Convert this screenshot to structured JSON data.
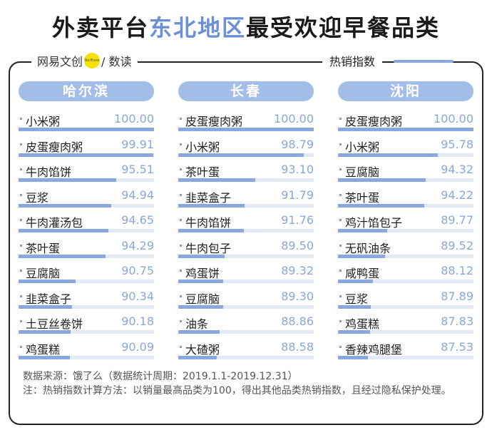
{
  "header": {
    "title_before": "外卖平台",
    "title_highlight": "东北地区",
    "title_after": "最受欢迎早餐品类"
  },
  "brand": {
    "text_left": "网易文创",
    "logo_text": "NetEase",
    "text_right": "/ 数读"
  },
  "legend_label": "热销指数",
  "chart_data": {
    "type": "bar",
    "title": "外卖平台东北地区最受欢迎早餐品类",
    "value_label": "热销指数",
    "xlim": [
      0,
      100
    ],
    "cities": [
      {
        "name": "哈尔滨",
        "items": [
          {
            "name": "小米粥",
            "value": 100.0,
            "display": "100.00"
          },
          {
            "name": "皮蛋瘦肉粥",
            "value": 99.91,
            "display": "99.91"
          },
          {
            "name": "牛肉馅饼",
            "value": 95.51,
            "display": "95.51"
          },
          {
            "name": "豆浆",
            "value": 94.94,
            "display": "94.94"
          },
          {
            "name": "牛肉灌汤包",
            "value": 94.65,
            "display": "94.65"
          },
          {
            "name": "茶叶蛋",
            "value": 94.29,
            "display": "94.29"
          },
          {
            "name": "豆腐脑",
            "value": 90.75,
            "display": "90.75"
          },
          {
            "name": "韭菜盒子",
            "value": 90.34,
            "display": "90.34"
          },
          {
            "name": "土豆丝卷饼",
            "value": 90.18,
            "display": "90.18"
          },
          {
            "name": "鸡蛋糕",
            "value": 90.09,
            "display": "90.09"
          }
        ]
      },
      {
        "name": "长春",
        "items": [
          {
            "name": "皮蛋瘦肉粥",
            "value": 100.0,
            "display": "100.00"
          },
          {
            "name": "小米粥",
            "value": 98.79,
            "display": "98.79"
          },
          {
            "name": "茶叶蛋",
            "value": 93.1,
            "display": "93.10"
          },
          {
            "name": "韭菜盒子",
            "value": 91.79,
            "display": "91.79"
          },
          {
            "name": "牛肉馅饼",
            "value": 91.76,
            "display": "91.76"
          },
          {
            "name": "牛肉包子",
            "value": 89.5,
            "display": "89.50"
          },
          {
            "name": "鸡蛋饼",
            "value": 89.32,
            "display": "89.32"
          },
          {
            "name": "豆腐脑",
            "value": 89.3,
            "display": "89.30"
          },
          {
            "name": "油条",
            "value": 88.86,
            "display": "88.86"
          },
          {
            "name": "大碴粥",
            "value": 88.58,
            "display": "88.58"
          }
        ]
      },
      {
        "name": "沈阳",
        "items": [
          {
            "name": "皮蛋瘦肉粥",
            "value": 100.0,
            "display": "100.00"
          },
          {
            "name": "小米粥",
            "value": 95.78,
            "display": "95.78"
          },
          {
            "name": "豆腐脑",
            "value": 94.32,
            "display": "94.32"
          },
          {
            "name": "茶叶蛋",
            "value": 94.22,
            "display": "94.22"
          },
          {
            "name": "鸡汁馅包子",
            "value": 89.77,
            "display": "89.77"
          },
          {
            "name": "无矾油条",
            "value": 89.52,
            "display": "89.52"
          },
          {
            "name": "咸鸭蛋",
            "value": 88.12,
            "display": "88.12"
          },
          {
            "name": "豆浆",
            "value": 87.89,
            "display": "87.89"
          },
          {
            "name": "鸡蛋糕",
            "value": 87.83,
            "display": "87.83"
          },
          {
            "name": "香辣鸡腿堡",
            "value": 87.53,
            "display": "87.53"
          }
        ]
      }
    ]
  },
  "notes": {
    "source": "数据来源：饿了么（数据统计周期：2019.1.1-2019.12.31）",
    "method": "注：热销指数计算方法：以销量最高品类为100，得出其他品类热销指数，且经过隐私保护处理。"
  },
  "colors": {
    "accent": "#6d8fd6",
    "pill": "#a3bde9",
    "bar": "#8aa8de",
    "track": "#e3eaf6",
    "value_text": "#8ba7d8"
  }
}
